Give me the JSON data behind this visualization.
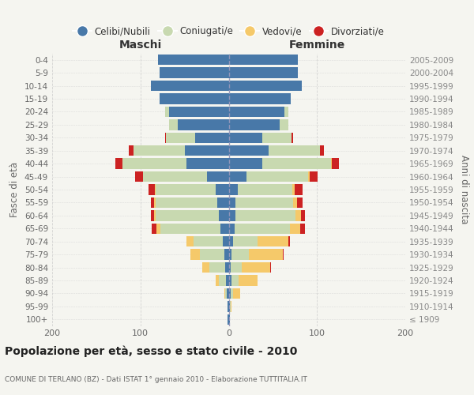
{
  "age_groups": [
    "100+",
    "95-99",
    "90-94",
    "85-89",
    "80-84",
    "75-79",
    "70-74",
    "65-69",
    "60-64",
    "55-59",
    "50-54",
    "45-49",
    "40-44",
    "35-39",
    "30-34",
    "25-29",
    "20-24",
    "15-19",
    "10-14",
    "5-9",
    "0-4"
  ],
  "birth_years": [
    "≤ 1909",
    "1910-1914",
    "1915-1919",
    "1920-1924",
    "1925-1929",
    "1930-1934",
    "1935-1939",
    "1940-1944",
    "1945-1949",
    "1950-1954",
    "1955-1959",
    "1960-1964",
    "1965-1969",
    "1970-1974",
    "1975-1979",
    "1980-1984",
    "1985-1989",
    "1990-1994",
    "1995-1999",
    "2000-2004",
    "2005-2009"
  ],
  "maschi": {
    "celibi": [
      1,
      1,
      2,
      3,
      4,
      5,
      7,
      9,
      11,
      13,
      15,
      25,
      48,
      50,
      38,
      58,
      68,
      78,
      88,
      78,
      80
    ],
    "coniugati": [
      0,
      0,
      2,
      8,
      18,
      28,
      33,
      68,
      72,
      70,
      68,
      72,
      72,
      58,
      33,
      10,
      4,
      0,
      0,
      0,
      0
    ],
    "vedovi": [
      0,
      0,
      1,
      4,
      8,
      10,
      8,
      5,
      2,
      2,
      1,
      0,
      0,
      0,
      0,
      0,
      0,
      0,
      0,
      0,
      0
    ],
    "divorziati": [
      0,
      0,
      0,
      0,
      0,
      0,
      0,
      5,
      3,
      3,
      7,
      9,
      8,
      5,
      1,
      0,
      0,
      0,
      0,
      0,
      0
    ]
  },
  "femmine": {
    "nubili": [
      1,
      1,
      2,
      3,
      2,
      3,
      5,
      7,
      8,
      8,
      10,
      20,
      38,
      45,
      38,
      58,
      63,
      70,
      83,
      78,
      78
    ],
    "coniugate": [
      0,
      1,
      3,
      8,
      13,
      20,
      28,
      62,
      68,
      65,
      62,
      70,
      78,
      58,
      33,
      10,
      5,
      0,
      0,
      0,
      0
    ],
    "vedove": [
      0,
      1,
      8,
      22,
      32,
      38,
      35,
      12,
      6,
      4,
      3,
      2,
      1,
      0,
      0,
      0,
      0,
      0,
      0,
      0,
      0
    ],
    "divorziate": [
      0,
      0,
      0,
      0,
      1,
      1,
      1,
      5,
      4,
      7,
      9,
      9,
      8,
      5,
      2,
      0,
      0,
      0,
      0,
      0,
      0
    ]
  },
  "colors": {
    "celibi_nubili": "#4878a8",
    "coniugati": "#c8d9b0",
    "vedovi": "#f5c96a",
    "divorziati": "#cc2222"
  },
  "title": "Popolazione per età, sesso e stato civile - 2010",
  "subtitle": "COMUNE DI TERLANO (BZ) - Dati ISTAT 1° gennaio 2010 - Elaborazione TUTTITALIA.IT",
  "xlabel_left": "Maschi",
  "xlabel_right": "Femmine",
  "ylabel_left": "Fasce di età",
  "ylabel_right": "Anni di nascita",
  "xlim": 200,
  "background": "#f5f5f0",
  "legend_labels": [
    "Celibi/Nubili",
    "Coniugati/e",
    "Vedovi/e",
    "Divorziati/e"
  ]
}
